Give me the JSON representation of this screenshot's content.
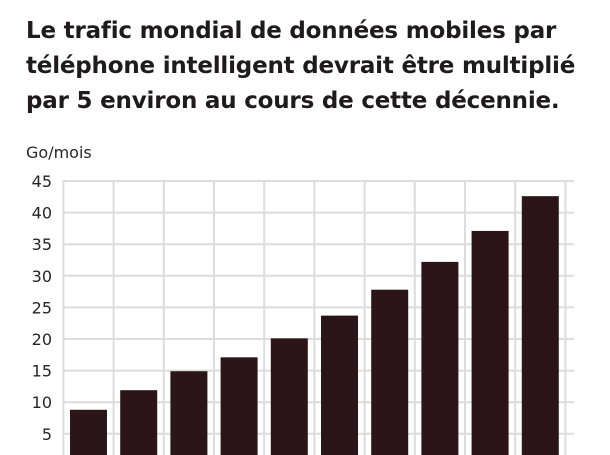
{
  "chart_data": {
    "type": "bar",
    "title": "Le trafic mondial de données mobiles par téléphone intelligent devrait être multiplié par 5 environ au cours de cette décennie.",
    "ylabel": "Go/mois",
    "xlabel": "",
    "ylim": [
      0,
      45
    ],
    "yticks": [
      5,
      10,
      15,
      20,
      25,
      30,
      35,
      40,
      45
    ],
    "ytick_labels": [
      "5",
      "10",
      "15",
      "20",
      "25",
      "30",
      "35",
      "40",
      "45"
    ],
    "values": [
      8.8,
      11.9,
      14.9,
      17.1,
      20.1,
      23.7,
      27.8,
      32.2,
      37.1,
      42.6
    ],
    "grid": true,
    "colors": {
      "bar": "#2b1519",
      "grid": "#dcdcdc",
      "text": "#1f1a1c"
    }
  }
}
